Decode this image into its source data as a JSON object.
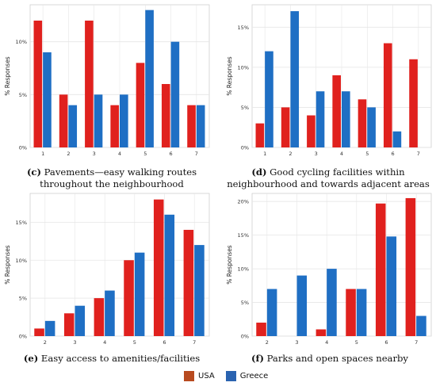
{
  "colors": {
    "usa": "#e0211e",
    "greece": "#1f6fc4",
    "grid": "#e6e6e6",
    "axis_text": "#333333"
  },
  "legend": [
    {
      "name": "USA",
      "color": "#e0211e"
    },
    {
      "name": "Greece",
      "color": "#1f6fc4"
    }
  ],
  "panels": [
    {
      "letter": "(c)",
      "caption": "Pavements—easy walking routes throughout the neighbourhood"
    },
    {
      "letter": "(d)",
      "caption": "Good cycling facilities within neighbourhood and towards adjacent areas"
    },
    {
      "letter": "(e)",
      "caption": "Easy access to amenities/facilities"
    },
    {
      "letter": "(f)",
      "caption": "Parks and open spaces nearby"
    }
  ],
  "chart_data": [
    {
      "type": "bar",
      "title": "",
      "xlabel": "",
      "ylabel": "% Responses",
      "categories": [
        "1",
        "2",
        "3",
        "4",
        "5",
        "6",
        "7"
      ],
      "series": [
        {
          "name": "USA",
          "values": [
            12,
            5,
            12,
            4,
            8,
            6,
            4
          ]
        },
        {
          "name": "Greece",
          "values": [
            9,
            4,
            5,
            5,
            13,
            10,
            4
          ]
        }
      ],
      "ylim": [
        0,
        13.5
      ],
      "yticks": [
        0,
        5,
        10
      ],
      "ytick_labels": [
        "0%",
        "5%",
        "10%"
      ],
      "grid": true
    },
    {
      "type": "bar",
      "title": "",
      "xlabel": "",
      "ylabel": "% Responses",
      "categories": [
        "1",
        "2",
        "3",
        "4",
        "5",
        "6",
        "7"
      ],
      "series": [
        {
          "name": "USA",
          "values": [
            3,
            5,
            4,
            9,
            6,
            13,
            11
          ]
        },
        {
          "name": "Greece",
          "values": [
            12,
            17,
            7,
            7,
            5,
            2,
            null
          ]
        }
      ],
      "ylim": [
        0,
        17.8
      ],
      "yticks": [
        0,
        5,
        10,
        15
      ],
      "ytick_labels": [
        "0%",
        "5%",
        "10%",
        "15%"
      ],
      "grid": true
    },
    {
      "type": "bar",
      "title": "",
      "xlabel": "",
      "ylabel": "% Responses",
      "categories": [
        "2",
        "3",
        "4",
        "5",
        "6",
        "7"
      ],
      "series": [
        {
          "name": "USA",
          "values": [
            1,
            3,
            5,
            10,
            18,
            14
          ]
        },
        {
          "name": "Greece",
          "values": [
            2,
            4,
            6,
            11,
            16,
            12
          ]
        }
      ],
      "ylim": [
        0,
        18.8
      ],
      "yticks": [
        0,
        5,
        10,
        15
      ],
      "ytick_labels": [
        "0%",
        "5%",
        "10%",
        "15%"
      ],
      "grid": true
    },
    {
      "type": "bar",
      "title": "",
      "xlabel": "",
      "ylabel": "% Responses",
      "categories": [
        "2",
        "3",
        "4",
        "5",
        "6",
        "7"
      ],
      "series": [
        {
          "name": "USA",
          "values": [
            2,
            null,
            1,
            7,
            19.7,
            20.5
          ]
        },
        {
          "name": "Greece",
          "values": [
            7,
            9,
            10,
            7,
            14.8,
            3
          ]
        }
      ],
      "ylim": [
        0,
        21.2
      ],
      "yticks": [
        0,
        5,
        10,
        15,
        20
      ],
      "ytick_labels": [
        "0%",
        "5%",
        "10%",
        "15%",
        "20%"
      ],
      "grid": true
    }
  ]
}
